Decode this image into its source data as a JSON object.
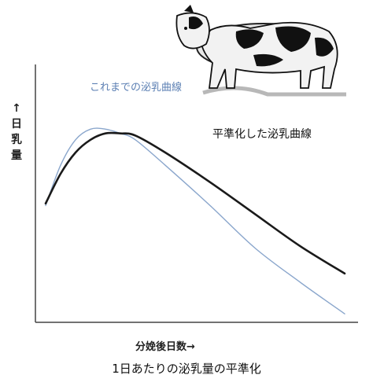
{
  "chart_data": {
    "type": "line",
    "caption": "1日あたりの泌乳量の平準化",
    "xlabel": "分娩後日数→",
    "ylabel": "↑ 日 乳 量",
    "ylabel_chars": [
      "↑",
      "日",
      "乳",
      "量"
    ],
    "xlim": [
      0,
      100
    ],
    "ylim": [
      0,
      100
    ],
    "grid": false,
    "ticks": false,
    "series": [
      {
        "name": "これまでの泌乳曲線",
        "color": "#8aa6cc",
        "x": [
          0,
          5,
          10,
          15,
          20,
          25,
          30,
          40,
          55,
          70,
          85,
          100
        ],
        "y": [
          55,
          74,
          86,
          91,
          91,
          89,
          86,
          74,
          55,
          35,
          19,
          4
        ]
      },
      {
        "name": "平準化した泌乳曲線",
        "color": "#1a1a1a",
        "x": [
          0,
          5,
          10,
          15,
          20,
          25,
          30,
          40,
          55,
          70,
          85,
          100
        ],
        "y": [
          56,
          70,
          80,
          86,
          89,
          89,
          88,
          80,
          66,
          51,
          36,
          23
        ]
      }
    ]
  }
}
